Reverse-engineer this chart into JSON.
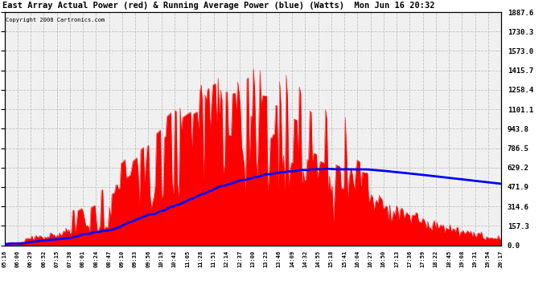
{
  "title": "East Array Actual Power (red) & Running Average Power (blue) (Watts)  Mon Jun 16 20:32",
  "copyright": "Copyright 2008 Cartronics.com",
  "ylabel_values": [
    1887.6,
    1730.3,
    1573.0,
    1415.7,
    1258.4,
    1101.1,
    943.8,
    786.5,
    629.2,
    471.9,
    314.6,
    157.3,
    0.0
  ],
  "ymax": 1887.6,
  "ymin": 0.0,
  "background_color": "#ffffff",
  "plot_bg_color": "#f0f0f0",
  "grid_color": "#bbbbbb",
  "actual_color": "#ff0000",
  "avg_color": "#0000ff",
  "x_tick_labels": [
    "05:16",
    "06:06",
    "06:29",
    "06:52",
    "07:15",
    "07:38",
    "08:01",
    "08:24",
    "08:47",
    "09:10",
    "09:33",
    "09:56",
    "10:19",
    "10:42",
    "11:05",
    "11:28",
    "11:51",
    "12:14",
    "12:37",
    "13:00",
    "13:23",
    "13:46",
    "14:09",
    "14:32",
    "14:55",
    "15:18",
    "15:41",
    "16:04",
    "16:27",
    "16:50",
    "17:13",
    "17:36",
    "17:59",
    "18:22",
    "18:45",
    "19:08",
    "19:31",
    "19:54",
    "20:17"
  ]
}
